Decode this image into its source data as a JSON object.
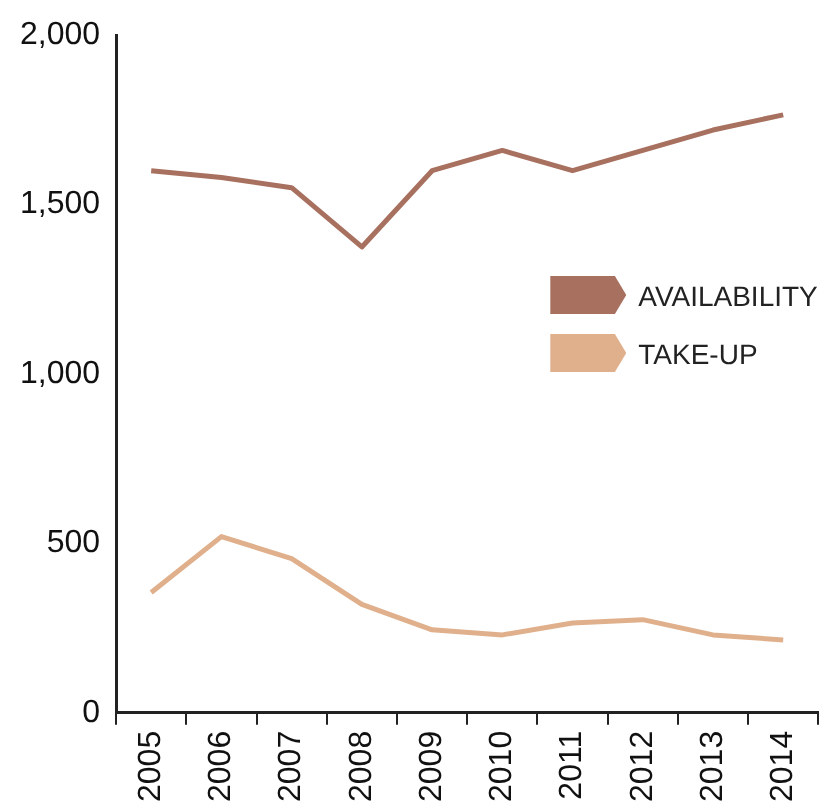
{
  "chart_data": {
    "type": "line",
    "categories": [
      "2005",
      "2006",
      "2007",
      "2008",
      "2009",
      "2010",
      "2011",
      "2012",
      "2013",
      "2014"
    ],
    "series": [
      {
        "name": "AVAILABILITY",
        "color": "#a8705f",
        "values": [
          1600,
          1580,
          1550,
          1375,
          1600,
          1660,
          1600,
          1660,
          1720,
          1765
        ]
      },
      {
        "name": "TAKE-UP",
        "color": "#e0b08c",
        "values": [
          355,
          520,
          455,
          320,
          245,
          230,
          265,
          275,
          230,
          215
        ]
      }
    ],
    "ylim": [
      0,
      2000
    ],
    "yticks": [
      0,
      500,
      {
        "value": 1000,
        "label": "1,000"
      },
      {
        "value": 1500,
        "label": "1,500"
      },
      {
        "value": 2000,
        "label": "2,000"
      }
    ],
    "legend": "right",
    "marker": "none",
    "line_style": "solid"
  }
}
